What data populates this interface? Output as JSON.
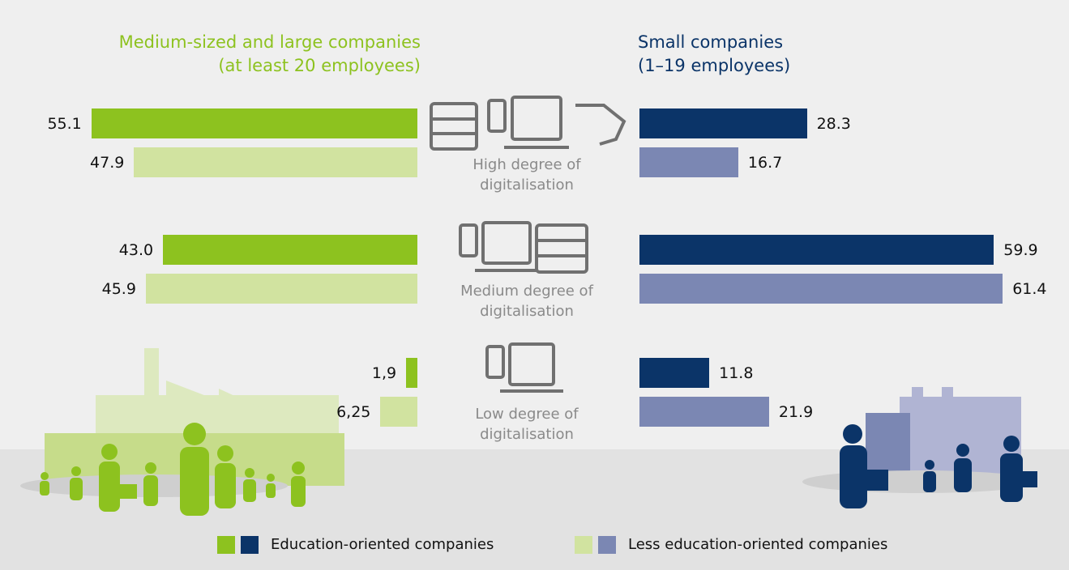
{
  "chart_data": {
    "type": "butterfly",
    "categories": [
      "High degree of digitalisation",
      "Medium degree of digitalisation",
      "Low degree of digitalisation"
    ],
    "groups": [
      {
        "name": "Medium-sized and large companies (at least 20 employees)",
        "color": "#8dc21f",
        "series": [
          {
            "name": "Education-oriented companies",
            "color": "#8dc21f",
            "values": [
              55.1,
              43.0,
              1.9
            ],
            "value_labels": [
              "55.1",
              "43.0",
              "1,9"
            ]
          },
          {
            "name": "Less education-oriented companies",
            "color": "#d1e3a0",
            "values": [
              47.9,
              45.9,
              6.25
            ],
            "value_labels": [
              "47.9",
              "45.9",
              "6,25"
            ]
          }
        ]
      },
      {
        "name": "Small companies (1–19 employees)",
        "color": "#0b3468",
        "series": [
          {
            "name": "Education-oriented companies",
            "color": "#0b3468",
            "values": [
              28.3,
              59.9,
              11.8
            ],
            "value_labels": [
              "28.3",
              "59.9",
              "11.8"
            ]
          },
          {
            "name": "Less education-oriented companies",
            "color": "#7b87b3",
            "values": [
              16.7,
              61.4,
              21.9
            ],
            "value_labels": [
              "16.7",
              "61.4",
              "21.9"
            ]
          }
        ]
      }
    ]
  }
}
